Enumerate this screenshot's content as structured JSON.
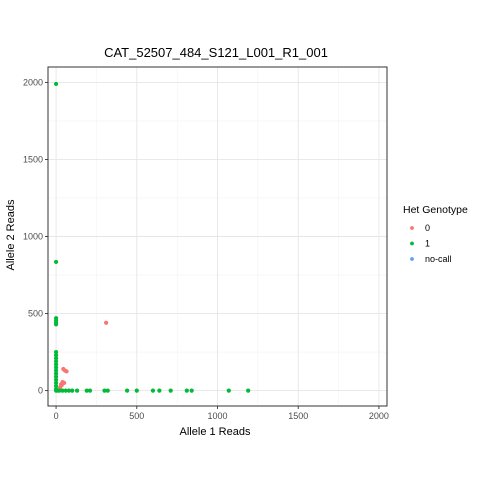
{
  "chart_data": {
    "type": "scatter",
    "title": "CAT_52507_484_S121_L001_R1_001",
    "xlabel": "Allele 1 Reads",
    "ylabel": "Allele 2 Reads",
    "xlim": [
      -50,
      2050
    ],
    "ylim": [
      -100,
      2100
    ],
    "x_ticks": [
      0,
      500,
      1000,
      1500,
      2000
    ],
    "y_ticks": [
      0,
      500,
      1000,
      1500,
      2000
    ],
    "grid": true,
    "legend": {
      "title": "Het Genotype",
      "position": "right",
      "entries": [
        "0",
        "1",
        "no-call"
      ]
    },
    "series": [
      {
        "name": "0",
        "color": "#F8766D",
        "points": [
          [
            310,
            440
          ],
          [
            45,
            140
          ],
          [
            55,
            130
          ],
          [
            65,
            125
          ],
          [
            40,
            55
          ],
          [
            50,
            50
          ],
          [
            30,
            40
          ],
          [
            25,
            20
          ],
          [
            35,
            35
          ]
        ]
      },
      {
        "name": "1",
        "color": "#00BA38",
        "points": [
          [
            0,
            1990
          ],
          [
            0,
            835
          ],
          [
            0,
            470
          ],
          [
            0,
            455
          ],
          [
            0,
            440
          ],
          [
            0,
            430
          ],
          [
            0,
            250
          ],
          [
            0,
            230
          ],
          [
            0,
            210
          ],
          [
            0,
            190
          ],
          [
            0,
            170
          ],
          [
            0,
            150
          ],
          [
            0,
            130
          ],
          [
            0,
            110
          ],
          [
            0,
            90
          ],
          [
            0,
            70
          ],
          [
            0,
            50
          ],
          [
            0,
            30
          ],
          [
            0,
            10
          ],
          [
            0,
            0
          ],
          [
            10,
            0
          ],
          [
            20,
            0
          ],
          [
            40,
            0
          ],
          [
            60,
            0
          ],
          [
            80,
            0
          ],
          [
            100,
            0
          ],
          [
            130,
            0
          ],
          [
            190,
            0
          ],
          [
            210,
            0
          ],
          [
            300,
            0
          ],
          [
            320,
            0
          ],
          [
            440,
            0
          ],
          [
            500,
            0
          ],
          [
            600,
            0
          ],
          [
            640,
            0
          ],
          [
            710,
            0
          ],
          [
            810,
            0
          ],
          [
            840,
            0
          ],
          [
            1070,
            0
          ],
          [
            1190,
            0
          ]
        ]
      },
      {
        "name": "no-call",
        "color": "#619CFF",
        "points": []
      }
    ]
  }
}
